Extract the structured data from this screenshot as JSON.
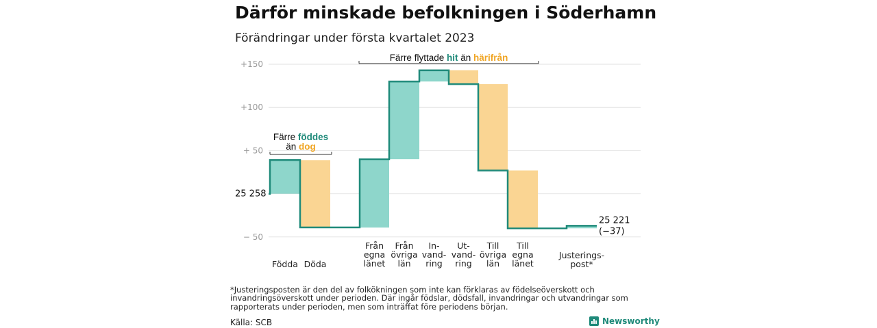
{
  "title": "Därför minskade befolkningen i Söderhamn",
  "subtitle": "Förändringar under första kvartalet 2023",
  "colors": {
    "positive": "#8ed6cb",
    "negative": "#fad593",
    "line": "#1f8a7a",
    "grid": "#e2e2e2",
    "axis_text": "#9a9a9a",
    "teal_text": "#1f8a7a",
    "orange_text": "#f0a524"
  },
  "annotations": {
    "births": {
      "line1": "Färre",
      "hl1": "föddes",
      "line2a": "än",
      "hl2": "dog"
    },
    "migration": {
      "pre": "Färre flyttade",
      "hl1": "hit",
      "mid": "än",
      "hl2": "härifrån"
    }
  },
  "chart_data": {
    "type": "waterfall",
    "start": {
      "value": 25258,
      "label": "25 258"
    },
    "end": {
      "value": 25221,
      "label": "25 221",
      "change_label": "(−37)"
    },
    "y_ticks": [
      {
        "value": 150,
        "label": "+150"
      },
      {
        "value": 100,
        "label": "+100"
      },
      {
        "value": 50,
        "label": "+ 50"
      },
      {
        "value": -50,
        "label": "− 50"
      }
    ],
    "ylim": [
      -55,
      160
    ],
    "steps": [
      {
        "label": [
          "Födda"
        ],
        "delta": 39
      },
      {
        "label": [
          "Döda"
        ],
        "delta": -78
      },
      {
        "label": [
          "Från",
          "egna",
          "länet"
        ],
        "delta": 79
      },
      {
        "label": [
          "Från",
          "övriga",
          "län"
        ],
        "delta": 90
      },
      {
        "label": [
          "In-",
          "vand-",
          "ring"
        ],
        "delta": 13
      },
      {
        "label": [
          "Ut-",
          "vand-",
          "ring"
        ],
        "delta": -16
      },
      {
        "label": [
          "Till",
          "övriga",
          "län"
        ],
        "delta": -100
      },
      {
        "label": [
          "Till",
          "egna",
          "länet"
        ],
        "delta": -67
      },
      {
        "label": [
          "Justerings-",
          "post*"
        ],
        "delta": 3
      }
    ]
  },
  "footnote": "*Justeringsposten är den del av folkökningen som inte kan förklaras av födelseöverskott och invandringsöverskott under perioden. Där ingår födslar, dödsfall, invandringar och utvandringar som rapporterats under perioden, men som inträffat före periodens början.",
  "source": "Källa: SCB",
  "brand": "Newsworthy"
}
